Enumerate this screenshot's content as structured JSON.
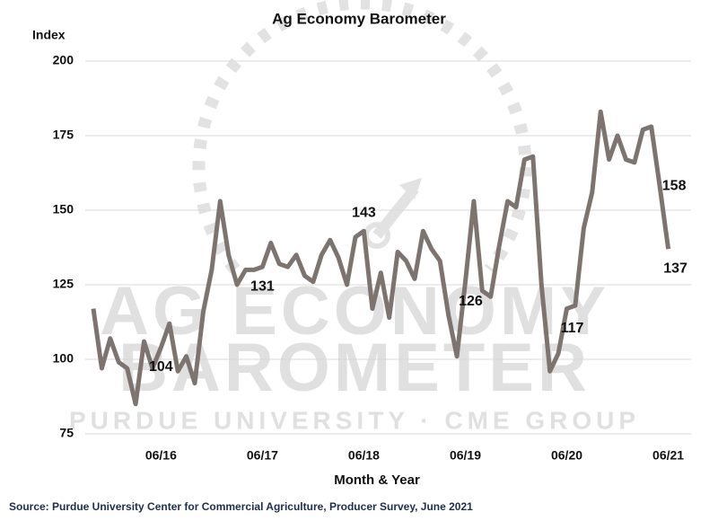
{
  "chart_data": {
    "type": "line",
    "title": "Ag Economy Barometer",
    "y_label": "Index",
    "x_label": "Month & Year",
    "source": "Source: Purdue University Center for Commercial Agriculture, Producer Survey, June 2021",
    "watermark": [
      "AG ECONOMY",
      "BAROMETER",
      "PURDUE UNIVERSITY · CME GROUP"
    ],
    "categories": [
      null,
      null,
      null,
      null,
      null,
      null,
      null,
      null,
      "06/16",
      null,
      null,
      null,
      null,
      null,
      null,
      null,
      null,
      null,
      null,
      null,
      "06/17",
      null,
      null,
      null,
      null,
      null,
      null,
      null,
      null,
      null,
      null,
      null,
      "06/18",
      null,
      null,
      null,
      null,
      null,
      null,
      null,
      null,
      null,
      null,
      null,
      "06/19",
      null,
      null,
      null,
      null,
      null,
      null,
      null,
      null,
      null,
      null,
      null,
      "06/20",
      null,
      null,
      null,
      null,
      null,
      null,
      null,
      null,
      null,
      null,
      null,
      "06/21"
    ],
    "values": [
      117,
      97,
      107,
      99,
      97,
      85,
      106,
      97,
      104,
      112,
      96,
      101,
      92,
      116,
      130,
      153,
      135,
      125,
      130,
      130,
      131,
      139,
      132,
      131,
      135,
      128,
      126,
      135,
      140,
      134,
      125,
      141,
      143,
      117,
      129,
      114,
      136,
      133,
      127,
      143,
      137,
      133,
      115,
      101,
      126,
      153,
      123,
      121,
      138,
      153,
      151,
      167,
      168,
      125,
      96,
      102,
      117,
      118,
      144,
      156,
      183,
      167,
      175,
      167,
      166,
      177,
      178,
      158,
      137
    ],
    "color": "#7d7470",
    "labeled_points": [
      8,
      20,
      32,
      44,
      56,
      67,
      68
    ],
    "ylim": [
      75,
      200
    ],
    "yticks": [
      75,
      100,
      125,
      150,
      175,
      200
    ],
    "grid": true
  }
}
